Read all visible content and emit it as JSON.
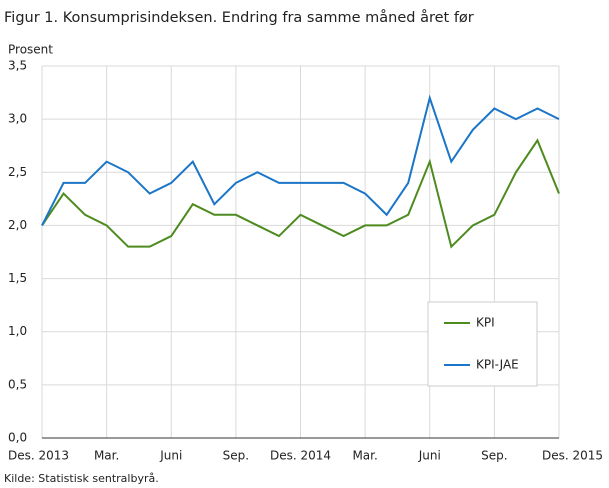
{
  "chart_data": {
    "type": "line",
    "title": "Figur 1. Konsumprisindeksen. Endring fra samme måned året før",
    "y_label": "Prosent",
    "source": "Kilde: Statistisk sentralbyrå.",
    "categories": [
      "Des. 2013",
      null,
      null,
      "Mar.",
      null,
      null,
      "Juni",
      null,
      null,
      "Sep.",
      null,
      null,
      "Des. 2014",
      null,
      null,
      "Mar.",
      null,
      null,
      "Juni",
      null,
      null,
      "Sep.",
      null,
      null,
      "Des. 2015"
    ],
    "series": [
      {
        "name": "KPI",
        "color": "#4d8b1f",
        "values": [
          2.0,
          2.3,
          2.1,
          2.0,
          1.8,
          1.8,
          1.9,
          2.2,
          2.1,
          2.1,
          2.0,
          1.9,
          2.1,
          2.0,
          1.9,
          2.0,
          2.0,
          2.1,
          2.6,
          1.8,
          2.0,
          2.1,
          2.5,
          2.8,
          2.3
        ]
      },
      {
        "name": "KPI-JAE",
        "color": "#1b75c8",
        "values": [
          2.0,
          2.4,
          2.4,
          2.6,
          2.5,
          2.3,
          2.4,
          2.6,
          2.2,
          2.4,
          2.5,
          2.4,
          2.4,
          2.4,
          2.4,
          2.3,
          2.1,
          2.4,
          3.2,
          2.6,
          2.9,
          3.1,
          3.0,
          3.1,
          3.0
        ]
      }
    ],
    "ylim": [
      0,
      3.5
    ],
    "yticks": [
      {
        "value": 0,
        "label": "0,0"
      },
      {
        "value": 0.5,
        "label": "0,5"
      },
      {
        "value": 1,
        "label": "1,0"
      },
      {
        "value": 1.5,
        "label": "1,5"
      },
      {
        "value": 2,
        "label": "2,0"
      },
      {
        "value": 2.5,
        "label": "2,5"
      },
      {
        "value": 3,
        "label": "3,0"
      },
      {
        "value": 3.5,
        "label": "3,5"
      }
    ],
    "grid": true,
    "legend": "lower-right"
  }
}
